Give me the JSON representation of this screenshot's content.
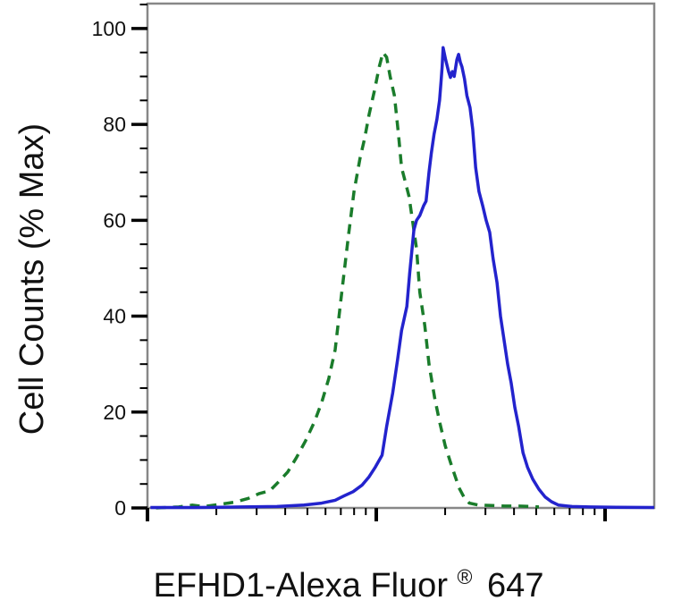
{
  "figure": {
    "background": "#ffffff",
    "description_colors": {
      "green_dashed_curve": "#1a7c2b",
      "blue_solid_curve": "#2323cd",
      "axis_frame": "#878787",
      "tick_marks": "#000000",
      "text": "#111111"
    }
  },
  "chart_data": {
    "type": "line",
    "subtype": "flow-cytometry-histogram-overlay",
    "title": "",
    "xlabel": "EFHD1-Alexa Fluor® 647",
    "xlabel_parts": {
      "main": "EFHD1-Alexa Fluor",
      "sup": "®",
      "suffix": "647"
    },
    "ylabel": "Cell Counts (% Max)",
    "grid": false,
    "legend": false,
    "x_axis": {
      "scale": "log",
      "min": 1,
      "max": 164,
      "decades": [
        1,
        10,
        100
      ],
      "minor_ticks_per_decade": [
        2,
        3,
        4,
        5,
        6,
        7,
        8,
        9
      ],
      "tick_labels_shown": false
    },
    "y_axis": {
      "scale": "linear",
      "min": 0,
      "max": 105,
      "major_ticks": [
        0,
        20,
        40,
        60,
        80,
        100
      ],
      "minor_tick_step": 5,
      "tick_labels_shown": true
    },
    "series": [
      {
        "id": "green-dashed",
        "name": "green dashed curve",
        "color": "#1a7c2b",
        "style": "dashed",
        "peak": {
          "x": 10.7,
          "y": 95
        },
        "points": [
          [
            1.09,
            0
          ],
          [
            1.37,
            0.2
          ],
          [
            1.57,
            0.6
          ],
          [
            1.76,
            0.3
          ],
          [
            2.11,
            0.8
          ],
          [
            2.39,
            1.2
          ],
          [
            2.76,
            2.0
          ],
          [
            3.08,
            3.0
          ],
          [
            3.43,
            3.6
          ],
          [
            3.75,
            5.5
          ],
          [
            4.1,
            7.5
          ],
          [
            4.48,
            10.5
          ],
          [
            4.91,
            14
          ],
          [
            5.37,
            18
          ],
          [
            5.77,
            22
          ],
          [
            6.2,
            27
          ],
          [
            6.61,
            33
          ],
          [
            7.03,
            44
          ],
          [
            7.57,
            57
          ],
          [
            7.99,
            66
          ],
          [
            8.5,
            73
          ],
          [
            8.89,
            77
          ],
          [
            9.3,
            82
          ],
          [
            9.81,
            87
          ],
          [
            10.3,
            92
          ],
          [
            10.7,
            95
          ],
          [
            11.1,
            94
          ],
          [
            11.5,
            90
          ],
          [
            12.0,
            86
          ],
          [
            12.5,
            78
          ],
          [
            12.9,
            71
          ],
          [
            13.4,
            68
          ],
          [
            13.9,
            65
          ],
          [
            14.4,
            60
          ],
          [
            15.0,
            54
          ],
          [
            15.5,
            45
          ],
          [
            16.3,
            38
          ],
          [
            17.0,
            30
          ],
          [
            18.0,
            23
          ],
          [
            18.9,
            18
          ],
          [
            20.0,
            13
          ],
          [
            21.3,
            8.9
          ],
          [
            23.0,
            4.2
          ],
          [
            24.2,
            2.2
          ],
          [
            25.5,
            1.0
          ],
          [
            27.9,
            0.6
          ],
          [
            31.9,
            0.5
          ],
          [
            36.5,
            0.4
          ],
          [
            41.9,
            0.4
          ],
          [
            47.8,
            0.3
          ],
          [
            51.4,
            0.2
          ]
        ]
      },
      {
        "id": "blue-solid",
        "name": "blue solid curve",
        "color": "#2323cd",
        "style": "solid",
        "peak": {
          "x": 19.6,
          "y": 96
        },
        "points": [
          [
            1.03,
            0.1
          ],
          [
            1.64,
            0.1
          ],
          [
            2.57,
            0.2
          ],
          [
            3.68,
            0.3
          ],
          [
            4.83,
            0.6
          ],
          [
            5.77,
            1.0
          ],
          [
            6.61,
            1.6
          ],
          [
            7.22,
            2.5
          ],
          [
            7.92,
            3.4
          ],
          [
            8.68,
            4.8
          ],
          [
            9.3,
            6.5
          ],
          [
            9.9,
            8.5
          ],
          [
            10.6,
            11
          ],
          [
            11.1,
            17
          ],
          [
            11.8,
            24
          ],
          [
            12.4,
            31
          ],
          [
            12.9,
            37
          ],
          [
            13.6,
            42
          ],
          [
            14.0,
            49
          ],
          [
            14.6,
            58
          ],
          [
            15.0,
            60
          ],
          [
            15.5,
            61
          ],
          [
            16.1,
            63
          ],
          [
            16.5,
            64
          ],
          [
            17.0,
            70
          ],
          [
            17.4,
            74
          ],
          [
            17.9,
            78
          ],
          [
            18.4,
            81
          ],
          [
            18.9,
            85
          ],
          [
            19.2,
            89
          ],
          [
            19.4,
            92
          ],
          [
            19.6,
            96
          ],
          [
            20.1,
            93.5
          ],
          [
            20.7,
            91
          ],
          [
            21.1,
            89.8
          ],
          [
            21.5,
            91
          ],
          [
            21.9,
            90
          ],
          [
            22.5,
            93.5
          ],
          [
            22.9,
            94.6
          ],
          [
            23.3,
            93
          ],
          [
            23.7,
            92
          ],
          [
            24.3,
            89.5
          ],
          [
            24.9,
            86
          ],
          [
            25.7,
            83.5
          ],
          [
            26.4,
            79
          ],
          [
            27.2,
            71
          ],
          [
            28.1,
            66
          ],
          [
            29.2,
            63
          ],
          [
            30.2,
            60
          ],
          [
            31.3,
            57.5
          ],
          [
            32.4,
            52
          ],
          [
            33.7,
            47
          ],
          [
            34.9,
            40
          ],
          [
            36.2,
            35
          ],
          [
            37.5,
            30
          ],
          [
            38.9,
            26
          ],
          [
            40.3,
            21
          ],
          [
            41.9,
            17
          ],
          [
            43.8,
            11.5
          ],
          [
            45.8,
            8.5
          ],
          [
            48.3,
            6.0
          ],
          [
            51.4,
            3.9
          ],
          [
            54.7,
            2.3
          ],
          [
            58.3,
            1.3
          ],
          [
            62.6,
            0.6
          ],
          [
            71.7,
            0.3
          ],
          [
            85.9,
            0.2
          ],
          [
            112,
            0.15
          ],
          [
            164,
            0.1
          ]
        ]
      }
    ]
  }
}
